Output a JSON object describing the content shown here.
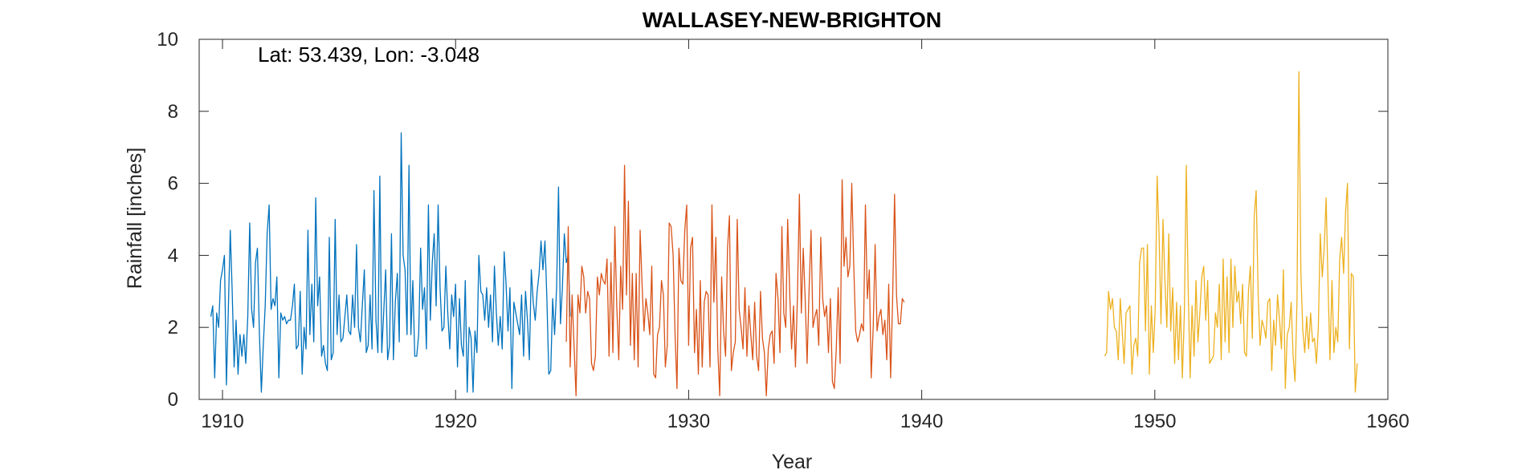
{
  "chart_data": {
    "type": "line",
    "title": "WALLASEY-NEW-BRIGHTON",
    "annotation": "Lat: 53.439, Lon: -3.048",
    "xlabel": "Year",
    "ylabel": "Rainfall [inches]",
    "xlim": [
      1909,
      1960
    ],
    "ylim": [
      0,
      10
    ],
    "xticks": [
      1910,
      1920,
      1930,
      1940,
      1950,
      1960
    ],
    "yticks": [
      0,
      2,
      4,
      6,
      8,
      10
    ],
    "grid": false,
    "box": true,
    "series": [
      {
        "color": "#0072BD",
        "x_start": 1909.5,
        "x_step": 0.0833333,
        "values": [
          2.3,
          2.6,
          0.6,
          2.4,
          2.0,
          3.3,
          3.6,
          4.0,
          0.4,
          2.5,
          4.7,
          3.0,
          0.9,
          2.2,
          0.7,
          1.8,
          1.2,
          1.8,
          1.0,
          2.3,
          4.9,
          2.5,
          2.0,
          3.8,
          4.2,
          1.8,
          0.2,
          1.5,
          2.6,
          4.6,
          5.4,
          2.5,
          2.8,
          2.6,
          3.4,
          0.6,
          2.4,
          2.2,
          2.3,
          2.1,
          2.2,
          2.2,
          2.6,
          3.2,
          1.4,
          1.5,
          3.0,
          0.7,
          2.0,
          1.4,
          4.7,
          1.8,
          3.2,
          1.6,
          5.6,
          2.6,
          3.4,
          1.2,
          1.5,
          1.0,
          0.8,
          4.5,
          1.1,
          1.3,
          5.0,
          1.8,
          2.9,
          1.6,
          1.7,
          2.3,
          2.9,
          1.9,
          1.8,
          2.9,
          2.0,
          4.3,
          2.0,
          1.6,
          2.6,
          3.6,
          1.3,
          1.5,
          2.9,
          1.4,
          5.8,
          2.2,
          1.3,
          6.2,
          1.3,
          2.4,
          3.6,
          1.1,
          1.5,
          4.6,
          1.1,
          2.7,
          3.5,
          1.6,
          7.4,
          4.0,
          3.6,
          1.8,
          6.5,
          1.8,
          3.3,
          1.2,
          1.2,
          1.8,
          4.2,
          2.5,
          3.1,
          1.4,
          5.4,
          2.2,
          3.8,
          4.6,
          2.6,
          5.4,
          3.1,
          1.9,
          2.0,
          3.7,
          2.4,
          1.4,
          2.9,
          2.3,
          3.2,
          0.9,
          2.8,
          1.5,
          1.2,
          3.3,
          0.2,
          2.0,
          1.7,
          0.2,
          1.9,
          1.3,
          4.0,
          3.0,
          2.9,
          2.2,
          3.1,
          2.0,
          2.9,
          1.6,
          3.7,
          2.4,
          1.5,
          2.3,
          1.4,
          4.1,
          3.2,
          1.9,
          3.1,
          0.3,
          2.7,
          2.4,
          2.1,
          1.8,
          2.9,
          1.2,
          3.0,
          2.2,
          1.1,
          3.6,
          2.7,
          2.2,
          3.0,
          3.5,
          4.4,
          3.6,
          4.4,
          2.8,
          0.7,
          0.8,
          2.8,
          1.8,
          3.1,
          5.9,
          2.1,
          3.1,
          4.6,
          3.8,
          4.0,
          2.3
        ]
      },
      {
        "color": "#D95319",
        "x_start": 1924.75,
        "x_step": 0.0833333,
        "values": [
          1.6,
          4.8,
          0.9,
          2.9,
          1.5,
          0.1,
          2.9,
          2.4,
          3.7,
          3.4,
          2.4,
          3.0,
          2.8,
          1.0,
          0.8,
          1.2,
          3.4,
          2.9,
          3.5,
          3.3,
          3.2,
          3.9,
          1.2,
          3.8,
          1.3,
          4.8,
          2.6,
          1.1,
          3.7,
          2.5,
          6.5,
          2.9,
          5.5,
          1.5,
          3.5,
          1.1,
          3.5,
          0.9,
          4.7,
          3.2,
          1.9,
          2.8,
          2.4,
          1.8,
          3.7,
          0.7,
          0.6,
          1.8,
          2.0,
          3.3,
          2.9,
          0.9,
          1.5,
          4.9,
          4.8,
          4.0,
          1.8,
          0.3,
          4.2,
          3.3,
          3.2,
          4.7,
          5.4,
          1.5,
          4.2,
          4.5,
          1.3,
          2.5,
          0.7,
          3.3,
          0.9,
          2.7,
          3.0,
          2.9,
          0.9,
          5.4,
          2.7,
          4.5,
          1.4,
          0.1,
          3.4,
          1.9,
          1.2,
          4.2,
          5.1,
          0.8,
          1.3,
          1.6,
          5.0,
          2.5,
          2.0,
          1.4,
          3.1,
          1.2,
          2.6,
          1.8,
          1.1,
          2.7,
          1.2,
          0.8,
          3.0,
          1.7,
          1.3,
          0.1,
          1.4,
          1.8,
          1.9,
          1.0,
          3.5,
          2.8,
          1.3,
          4.8,
          2.4,
          2.0,
          5.0,
          3.0,
          1.4,
          2.6,
          0.9,
          2.8,
          5.7,
          2.4,
          4.2,
          2.8,
          1.0,
          3.0,
          4.7,
          2.0,
          2.3,
          2.5,
          1.5,
          4.5,
          2.8,
          2.3,
          2.6,
          1.3,
          2.8,
          0.5,
          0.3,
          1.4,
          3.1,
          1.0,
          6.1,
          3.7,
          4.5,
          3.4,
          3.7,
          6.0,
          3.7,
          1.9,
          1.6,
          1.8,
          2.1,
          1.9,
          5.4,
          2.8,
          3.6,
          0.6,
          2.0,
          4.3,
          1.9,
          2.3,
          2.5,
          1.8,
          2.2,
          1.1,
          3.2,
          0.6,
          2.7,
          5.7,
          2.9,
          2.1,
          2.1,
          2.8,
          2.7
        ]
      },
      {
        "color": "#EDB120",
        "x_start": 1947.85,
        "x_step": 0.0833333,
        "values": [
          1.2,
          1.3,
          3.0,
          2.5,
          2.8,
          2.0,
          1.9,
          1.1,
          2.8,
          1.9,
          1.0,
          2.4,
          2.5,
          2.6,
          0.7,
          1.5,
          1.7,
          1.2,
          3.8,
          4.2,
          4.2,
          1.9,
          4.3,
          0.7,
          2.6,
          1.3,
          2.5,
          6.2,
          4.6,
          2.1,
          5.0,
          3.3,
          2.0,
          4.6,
          1.9,
          3.1,
          1.0,
          2.7,
          1.1,
          2.6,
          0.6,
          2.4,
          6.5,
          3.0,
          0.6,
          2.6,
          1.2,
          3.3,
          1.6,
          2.4,
          3.4,
          3.7,
          2.2,
          3.3,
          1.0,
          1.1,
          1.2,
          2.4,
          2.0,
          3.2,
          1.1,
          3.9,
          1.6,
          3.4,
          1.3,
          3.9,
          2.0,
          3.7,
          2.7,
          3.0,
          2.1,
          3.2,
          1.3,
          1.2,
          3.0,
          3.7,
          1.7,
          5.1,
          5.8,
          2.9,
          1.5,
          2.2,
          2.0,
          1.7,
          2.7,
          2.8,
          0.8,
          2.2,
          1.5,
          2.9,
          2.2,
          1.4,
          3.6,
          0.3,
          1.8,
          2.0,
          2.7,
          1.2,
          0.5,
          2.7,
          9.1,
          3.5,
          1.9,
          1.3,
          2.3,
          1.4,
          2.4,
          1.6,
          1.7,
          1.0,
          2.0,
          4.6,
          3.4,
          4.2,
          5.6,
          3.2,
          1.1,
          3.3,
          1.3,
          2.0,
          1.6,
          3.9,
          4.5,
          3.5,
          5.2,
          6.0,
          1.4,
          3.5,
          3.4,
          0.2,
          1.0
        ]
      }
    ]
  }
}
